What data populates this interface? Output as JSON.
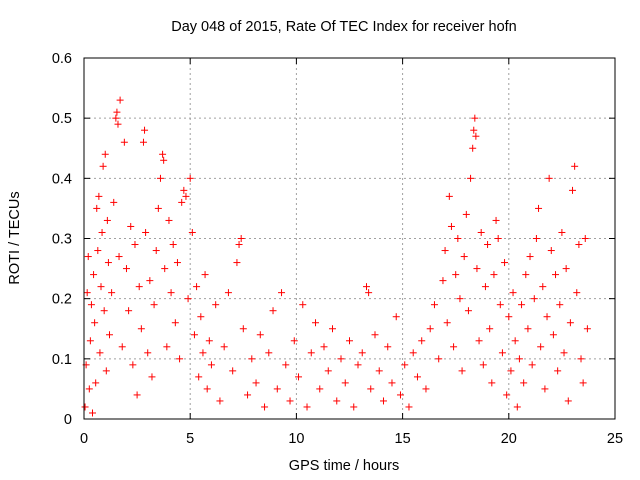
{
  "chart_data": {
    "type": "scatter",
    "title": "Day 048 of 2015, Rate Of TEC Index for receiver hofn",
    "xlabel": "GPS time / hours",
    "ylabel": "ROTI / TECUs",
    "xlim": [
      0,
      25
    ],
    "ylim": [
      0,
      0.6
    ],
    "xticks": [
      "0",
      "5",
      "10",
      "15",
      "20",
      "25"
    ],
    "yticks": [
      "0",
      "0.1",
      "0.2",
      "0.3",
      "0.4",
      "0.5",
      "0.6"
    ],
    "grid": true,
    "marker": "+",
    "color": "#ff0000",
    "series": [
      {
        "name": "ROTI",
        "points": [
          [
            0.05,
            0.02
          ],
          [
            0.1,
            0.09
          ],
          [
            0.15,
            0.21
          ],
          [
            0.2,
            0.27
          ],
          [
            0.25,
            0.05
          ],
          [
            0.3,
            0.13
          ],
          [
            0.35,
            0.19
          ],
          [
            0.4,
            0.01
          ],
          [
            0.45,
            0.24
          ],
          [
            0.5,
            0.16
          ],
          [
            0.55,
            0.06
          ],
          [
            0.6,
            0.35
          ],
          [
            0.65,
            0.28
          ],
          [
            0.7,
            0.37
          ],
          [
            0.75,
            0.11
          ],
          [
            0.8,
            0.22
          ],
          [
            0.85,
            0.31
          ],
          [
            0.9,
            0.42
          ],
          [
            0.95,
            0.18
          ],
          [
            1.0,
            0.44
          ],
          [
            1.05,
            0.08
          ],
          [
            1.1,
            0.33
          ],
          [
            1.15,
            0.26
          ],
          [
            1.2,
            0.14
          ],
          [
            1.3,
            0.21
          ],
          [
            1.4,
            0.36
          ],
          [
            1.5,
            0.5
          ],
          [
            1.55,
            0.51
          ],
          [
            1.6,
            0.49
          ],
          [
            1.65,
            0.27
          ],
          [
            1.7,
            0.53
          ],
          [
            1.8,
            0.12
          ],
          [
            1.9,
            0.46
          ],
          [
            2.0,
            0.25
          ],
          [
            2.1,
            0.18
          ],
          [
            2.2,
            0.32
          ],
          [
            2.3,
            0.09
          ],
          [
            2.4,
            0.29
          ],
          [
            2.5,
            0.04
          ],
          [
            2.6,
            0.22
          ],
          [
            2.7,
            0.15
          ],
          [
            2.8,
            0.46
          ],
          [
            2.85,
            0.48
          ],
          [
            2.9,
            0.31
          ],
          [
            3.0,
            0.11
          ],
          [
            3.1,
            0.23
          ],
          [
            3.2,
            0.07
          ],
          [
            3.3,
            0.19
          ],
          [
            3.4,
            0.28
          ],
          [
            3.5,
            0.35
          ],
          [
            3.6,
            0.4
          ],
          [
            3.7,
            0.44
          ],
          [
            3.75,
            0.43
          ],
          [
            3.8,
            0.25
          ],
          [
            3.9,
            0.12
          ],
          [
            4.0,
            0.33
          ],
          [
            4.1,
            0.21
          ],
          [
            4.2,
            0.29
          ],
          [
            4.3,
            0.16
          ],
          [
            4.4,
            0.26
          ],
          [
            4.5,
            0.1
          ],
          [
            4.6,
            0.36
          ],
          [
            4.7,
            0.38
          ],
          [
            4.8,
            0.37
          ],
          [
            4.9,
            0.2
          ],
          [
            5.0,
            0.4
          ],
          [
            5.1,
            0.31
          ],
          [
            5.2,
            0.14
          ],
          [
            5.3,
            0.22
          ],
          [
            5.4,
            0.07
          ],
          [
            5.5,
            0.17
          ],
          [
            5.6,
            0.11
          ],
          [
            5.7,
            0.24
          ],
          [
            5.8,
            0.05
          ],
          [
            5.9,
            0.13
          ],
          [
            6.0,
            0.09
          ],
          [
            6.2,
            0.19
          ],
          [
            6.4,
            0.03
          ],
          [
            6.6,
            0.12
          ],
          [
            6.8,
            0.21
          ],
          [
            7.0,
            0.08
          ],
          [
            7.2,
            0.26
          ],
          [
            7.3,
            0.29
          ],
          [
            7.4,
            0.3
          ],
          [
            7.5,
            0.15
          ],
          [
            7.7,
            0.04
          ],
          [
            7.9,
            0.1
          ],
          [
            8.1,
            0.06
          ],
          [
            8.3,
            0.14
          ],
          [
            8.5,
            0.02
          ],
          [
            8.7,
            0.11
          ],
          [
            8.9,
            0.18
          ],
          [
            9.1,
            0.05
          ],
          [
            9.3,
            0.21
          ],
          [
            9.5,
            0.09
          ],
          [
            9.7,
            0.03
          ],
          [
            9.9,
            0.13
          ],
          [
            10.1,
            0.07
          ],
          [
            10.3,
            0.19
          ],
          [
            10.5,
            0.02
          ],
          [
            10.7,
            0.11
          ],
          [
            10.9,
            0.16
          ],
          [
            11.1,
            0.05
          ],
          [
            11.3,
            0.12
          ],
          [
            11.5,
            0.08
          ],
          [
            11.7,
            0.15
          ],
          [
            11.9,
            0.03
          ],
          [
            12.1,
            0.1
          ],
          [
            12.3,
            0.06
          ],
          [
            12.5,
            0.13
          ],
          [
            12.7,
            0.02
          ],
          [
            12.9,
            0.09
          ],
          [
            13.1,
            0.11
          ],
          [
            13.3,
            0.22
          ],
          [
            13.4,
            0.21
          ],
          [
            13.5,
            0.05
          ],
          [
            13.7,
            0.14
          ],
          [
            13.9,
            0.08
          ],
          [
            14.1,
            0.03
          ],
          [
            14.3,
            0.12
          ],
          [
            14.5,
            0.06
          ],
          [
            14.7,
            0.17
          ],
          [
            14.9,
            0.04
          ],
          [
            15.1,
            0.09
          ],
          [
            15.3,
            0.02
          ],
          [
            15.5,
            0.11
          ],
          [
            15.7,
            0.07
          ],
          [
            15.9,
            0.13
          ],
          [
            16.1,
            0.05
          ],
          [
            16.3,
            0.15
          ],
          [
            16.5,
            0.19
          ],
          [
            16.7,
            0.1
          ],
          [
            16.9,
            0.23
          ],
          [
            17.0,
            0.28
          ],
          [
            17.1,
            0.16
          ],
          [
            17.2,
            0.37
          ],
          [
            17.3,
            0.32
          ],
          [
            17.4,
            0.12
          ],
          [
            17.5,
            0.24
          ],
          [
            17.6,
            0.3
          ],
          [
            17.7,
            0.2
          ],
          [
            17.8,
            0.08
          ],
          [
            17.9,
            0.27
          ],
          [
            18.0,
            0.34
          ],
          [
            18.1,
            0.18
          ],
          [
            18.2,
            0.4
          ],
          [
            18.3,
            0.45
          ],
          [
            18.35,
            0.48
          ],
          [
            18.4,
            0.5
          ],
          [
            18.45,
            0.47
          ],
          [
            18.5,
            0.25
          ],
          [
            18.6,
            0.13
          ],
          [
            18.7,
            0.31
          ],
          [
            18.8,
            0.09
          ],
          [
            18.9,
            0.22
          ],
          [
            19.0,
            0.29
          ],
          [
            19.1,
            0.15
          ],
          [
            19.2,
            0.06
          ],
          [
            19.3,
            0.24
          ],
          [
            19.4,
            0.33
          ],
          [
            19.5,
            0.3
          ],
          [
            19.6,
            0.19
          ],
          [
            19.7,
            0.11
          ],
          [
            19.8,
            0.26
          ],
          [
            19.9,
            0.04
          ],
          [
            20.0,
            0.17
          ],
          [
            20.1,
            0.08
          ],
          [
            20.2,
            0.21
          ],
          [
            20.3,
            0.13
          ],
          [
            20.4,
            0.02
          ],
          [
            20.5,
            0.1
          ],
          [
            20.6,
            0.19
          ],
          [
            20.7,
            0.06
          ],
          [
            20.8,
            0.24
          ],
          [
            20.9,
            0.15
          ],
          [
            21.0,
            0.27
          ],
          [
            21.1,
            0.09
          ],
          [
            21.2,
            0.2
          ],
          [
            21.3,
            0.3
          ],
          [
            21.4,
            0.35
          ],
          [
            21.5,
            0.12
          ],
          [
            21.6,
            0.22
          ],
          [
            21.7,
            0.05
          ],
          [
            21.8,
            0.17
          ],
          [
            21.9,
            0.4
          ],
          [
            22.0,
            0.28
          ],
          [
            22.1,
            0.14
          ],
          [
            22.2,
            0.24
          ],
          [
            22.3,
            0.08
          ],
          [
            22.4,
            0.19
          ],
          [
            22.5,
            0.31
          ],
          [
            22.6,
            0.11
          ],
          [
            22.7,
            0.25
          ],
          [
            22.8,
            0.03
          ],
          [
            22.9,
            0.16
          ],
          [
            23.0,
            0.38
          ],
          [
            23.1,
            0.42
          ],
          [
            23.2,
            0.21
          ],
          [
            23.3,
            0.29
          ],
          [
            23.4,
            0.1
          ],
          [
            23.5,
            0.06
          ],
          [
            23.6,
            0.3
          ],
          [
            23.7,
            0.15
          ]
        ]
      }
    ]
  }
}
